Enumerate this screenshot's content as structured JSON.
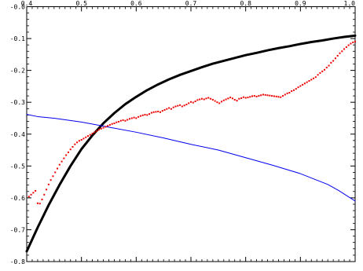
{
  "chart_data": {
    "type": "line",
    "xlim": [
      0.4,
      1.0
    ],
    "ylim": [
      -0.8,
      0.0
    ],
    "x_ticks": [
      0.4,
      0.5,
      0.6,
      0.7,
      0.8,
      0.9,
      1.0
    ],
    "x_tick_labels": [
      "0.4",
      "0.5",
      "0.6",
      "0.7",
      "0.8",
      "0.9",
      "1.0"
    ],
    "y_ticks": [
      0.0,
      -0.1,
      -0.2,
      -0.3,
      -0.4,
      -0.5,
      -0.6,
      -0.7,
      -0.8
    ],
    "y_tick_labels": [
      "-0.0",
      "-0.1",
      "-0.2",
      "-0.3",
      "-0.4",
      "-0.5",
      "-0.6",
      "-0.7",
      "-0.8"
    ],
    "x_axis_position": "top",
    "grid": false,
    "legend": "none",
    "series": [
      {
        "style": "line",
        "color": "#000000",
        "width": "thick",
        "x": [
          0.4,
          0.42,
          0.44,
          0.46,
          0.48,
          0.5,
          0.52,
          0.54,
          0.56,
          0.58,
          0.6,
          0.62,
          0.64,
          0.66,
          0.68,
          0.7,
          0.72,
          0.74,
          0.76,
          0.78,
          0.8,
          0.82,
          0.84,
          0.86,
          0.88,
          0.9,
          0.92,
          0.94,
          0.96,
          0.98,
          1.0
        ],
        "y": [
          -0.768,
          -0.693,
          -0.623,
          -0.559,
          -0.5,
          -0.447,
          -0.404,
          -0.366,
          -0.334,
          -0.306,
          -0.283,
          -0.262,
          -0.244,
          -0.228,
          -0.214,
          -0.202,
          -0.19,
          -0.179,
          -0.17,
          -0.161,
          -0.152,
          -0.145,
          -0.137,
          -0.13,
          -0.124,
          -0.117,
          -0.111,
          -0.106,
          -0.1,
          -0.095,
          -0.091
        ]
      },
      {
        "style": "line",
        "color": "#0000ee",
        "width": "thin",
        "x": [
          0.4,
          0.42,
          0.45,
          0.5,
          0.55,
          0.6,
          0.65,
          0.7,
          0.75,
          0.8,
          0.85,
          0.9,
          0.95,
          0.97,
          1.0
        ],
        "y": [
          -0.338,
          -0.345,
          -0.35,
          -0.362,
          -0.378,
          -0.394,
          -0.412,
          -0.432,
          -0.45,
          -0.474,
          -0.498,
          -0.524,
          -0.558,
          -0.577,
          -0.61
        ]
      },
      {
        "style": "points",
        "color": "#ee0000",
        "x": [
          0.404,
          0.408,
          0.412,
          0.416,
          0.42,
          0.424,
          0.428,
          0.432,
          0.436,
          0.44,
          0.444,
          0.448,
          0.452,
          0.456,
          0.46,
          0.464,
          0.468,
          0.472,
          0.476,
          0.48,
          0.484,
          0.488,
          0.492,
          0.496,
          0.5,
          0.504,
          0.508,
          0.512,
          0.516,
          0.52,
          0.524,
          0.528,
          0.532,
          0.536,
          0.54,
          0.544,
          0.548,
          0.552,
          0.556,
          0.56,
          0.564,
          0.568,
          0.572,
          0.576,
          0.58,
          0.584,
          0.588,
          0.592,
          0.596,
          0.6,
          0.604,
          0.608,
          0.612,
          0.616,
          0.62,
          0.624,
          0.628,
          0.632,
          0.636,
          0.64,
          0.644,
          0.648,
          0.652,
          0.656,
          0.66,
          0.664,
          0.668,
          0.672,
          0.676,
          0.68,
          0.684,
          0.688,
          0.692,
          0.696,
          0.7,
          0.704,
          0.708,
          0.712,
          0.716,
          0.72,
          0.724,
          0.728,
          0.732,
          0.736,
          0.74,
          0.744,
          0.748,
          0.752,
          0.756,
          0.76,
          0.764,
          0.768,
          0.772,
          0.776,
          0.78,
          0.784,
          0.788,
          0.792,
          0.796,
          0.8,
          0.804,
          0.808,
          0.812,
          0.816,
          0.82,
          0.824,
          0.828,
          0.832,
          0.836,
          0.84,
          0.844,
          0.848,
          0.852,
          0.856,
          0.86,
          0.864,
          0.868,
          0.872,
          0.876,
          0.88,
          0.884,
          0.888,
          0.892,
          0.896,
          0.9,
          0.904,
          0.908,
          0.912,
          0.916,
          0.92,
          0.924,
          0.928,
          0.932,
          0.936,
          0.94,
          0.944,
          0.948,
          0.952,
          0.956,
          0.96,
          0.964,
          0.968,
          0.972,
          0.976,
          0.98,
          0.984,
          0.988,
          0.992,
          0.996,
          1.0
        ],
        "y": [
          -0.596,
          -0.59,
          -0.584,
          -0.578,
          -0.617,
          -0.618,
          -0.605,
          -0.59,
          -0.574,
          -0.558,
          -0.544,
          -0.532,
          -0.52,
          -0.508,
          -0.496,
          -0.486,
          -0.476,
          -0.466,
          -0.457,
          -0.448,
          -0.44,
          -0.432,
          -0.426,
          -0.421,
          -0.418,
          -0.414,
          -0.41,
          -0.406,
          -0.402,
          -0.398,
          -0.394,
          -0.39,
          -0.386,
          -0.383,
          -0.38,
          -0.377,
          -0.374,
          -0.371,
          -0.368,
          -0.366,
          -0.363,
          -0.361,
          -0.358,
          -0.356,
          -0.358,
          -0.355,
          -0.352,
          -0.35,
          -0.348,
          -0.35,
          -0.346,
          -0.343,
          -0.341,
          -0.339,
          -0.34,
          -0.337,
          -0.333,
          -0.331,
          -0.33,
          -0.329,
          -0.331,
          -0.327,
          -0.324,
          -0.321,
          -0.318,
          -0.321,
          -0.316,
          -0.313,
          -0.311,
          -0.309,
          -0.313,
          -0.31,
          -0.307,
          -0.303,
          -0.299,
          -0.301,
          -0.297,
          -0.293,
          -0.291,
          -0.289,
          -0.291,
          -0.288,
          -0.286,
          -0.289,
          -0.292,
          -0.296,
          -0.3,
          -0.303,
          -0.298,
          -0.294,
          -0.291,
          -0.288,
          -0.285,
          -0.288,
          -0.292,
          -0.295,
          -0.289,
          -0.287,
          -0.284,
          -0.286,
          -0.285,
          -0.283,
          -0.281,
          -0.28,
          -0.282,
          -0.28,
          -0.278,
          -0.276,
          -0.277,
          -0.278,
          -0.279,
          -0.28,
          -0.281,
          -0.282,
          -0.283,
          -0.284,
          -0.28,
          -0.276,
          -0.272,
          -0.27,
          -0.265,
          -0.262,
          -0.258,
          -0.253,
          -0.249,
          -0.245,
          -0.241,
          -0.237,
          -0.233,
          -0.229,
          -0.225,
          -0.221,
          -0.214,
          -0.208,
          -0.203,
          -0.198,
          -0.191,
          -0.185,
          -0.176,
          -0.17,
          -0.162,
          -0.154,
          -0.146,
          -0.14,
          -0.133,
          -0.127,
          -0.121,
          -0.116,
          -0.112,
          -0.11
        ]
      }
    ]
  }
}
